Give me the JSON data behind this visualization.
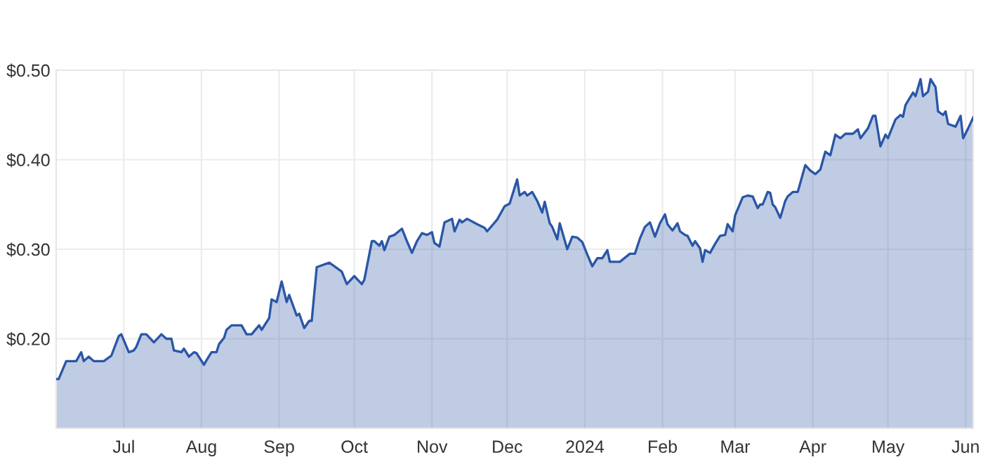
{
  "chart_data": {
    "type": "area",
    "x": [
      "2023-06-04",
      "2023-06-05",
      "2023-06-08",
      "2023-06-12",
      "2023-06-14",
      "2023-06-15",
      "2023-06-17",
      "2023-06-19",
      "2023-06-23",
      "2023-06-26",
      "2023-06-29",
      "2023-06-30",
      "2023-07-03",
      "2023-07-05",
      "2023-07-06",
      "2023-07-08",
      "2023-07-10",
      "2023-07-13",
      "2023-07-16",
      "2023-07-18",
      "2023-07-20",
      "2023-07-21",
      "2023-07-24",
      "2023-07-25",
      "2023-07-27",
      "2023-07-29",
      "2023-07-30",
      "2023-08-02",
      "2023-08-03",
      "2023-08-05",
      "2023-08-07",
      "2023-08-08",
      "2023-08-10",
      "2023-08-11",
      "2023-08-13",
      "2023-08-17",
      "2023-08-19",
      "2023-08-21",
      "2023-08-24",
      "2023-08-25",
      "2023-08-28",
      "2023-08-29",
      "2023-08-31",
      "2023-09-02",
      "2023-09-04",
      "2023-09-05",
      "2023-09-08",
      "2023-09-09",
      "2023-09-11",
      "2023-09-13",
      "2023-09-14",
      "2023-09-16",
      "2023-09-21",
      "2023-09-23",
      "2023-09-26",
      "2023-09-28",
      "2023-10-01",
      "2023-10-04",
      "2023-10-05",
      "2023-10-08",
      "2023-10-09",
      "2023-10-11",
      "2023-10-12",
      "2023-10-13",
      "2023-10-15",
      "2023-10-17",
      "2023-10-20",
      "2023-10-22",
      "2023-10-24",
      "2023-10-26",
      "2023-10-28",
      "2023-10-30",
      "2023-11-01",
      "2023-11-02",
      "2023-11-04",
      "2023-11-06",
      "2023-11-09",
      "2023-11-10",
      "2023-11-12",
      "2023-11-13",
      "2023-11-15",
      "2023-11-19",
      "2023-11-22",
      "2023-11-23",
      "2023-11-27",
      "2023-11-30",
      "2023-12-02",
      "2023-12-05",
      "2023-12-06",
      "2023-12-08",
      "2023-12-09",
      "2023-12-11",
      "2023-12-13",
      "2023-12-15",
      "2023-12-16",
      "2023-12-18",
      "2023-12-19",
      "2023-12-21",
      "2023-12-22",
      "2023-12-25",
      "2023-12-27",
      "2023-12-29",
      "2023-12-31",
      "2024-01-02",
      "2024-01-04",
      "2024-01-06",
      "2024-01-08",
      "2024-01-10",
      "2024-01-11",
      "2024-01-15",
      "2024-01-19",
      "2024-01-21",
      "2024-01-23",
      "2024-01-25",
      "2024-01-27",
      "2024-01-29",
      "2024-01-31",
      "2024-02-02",
      "2024-02-03",
      "2024-02-05",
      "2024-02-07",
      "2024-02-08",
      "2024-02-10",
      "2024-02-11",
      "2024-02-13",
      "2024-02-14",
      "2024-02-16",
      "2024-02-17",
      "2024-02-18",
      "2024-02-20",
      "2024-02-22",
      "2024-02-24",
      "2024-02-26",
      "2024-02-27",
      "2024-02-29",
      "2024-03-01",
      "2024-03-04",
      "2024-03-06",
      "2024-03-08",
      "2024-03-10",
      "2024-03-11",
      "2024-03-12",
      "2024-03-14",
      "2024-03-15",
      "2024-03-16",
      "2024-03-17",
      "2024-03-19",
      "2024-03-21",
      "2024-03-22",
      "2024-03-24",
      "2024-03-26",
      "2024-03-29",
      "2024-03-31",
      "2024-04-02",
      "2024-04-04",
      "2024-04-06",
      "2024-04-08",
      "2024-04-10",
      "2024-04-12",
      "2024-04-14",
      "2024-04-17",
      "2024-04-19",
      "2024-04-20",
      "2024-04-23",
      "2024-04-25",
      "2024-04-26",
      "2024-04-28",
      "2024-04-30",
      "2024-05-01",
      "2024-05-04",
      "2024-05-06",
      "2024-05-07",
      "2024-05-08",
      "2024-05-11",
      "2024-05-12",
      "2024-05-14",
      "2024-05-15",
      "2024-05-17",
      "2024-05-18",
      "2024-05-20",
      "2024-05-21",
      "2024-05-23",
      "2024-05-24",
      "2024-05-25",
      "2024-05-28",
      "2024-05-30",
      "2024-05-31",
      "2024-06-02",
      "2024-06-04"
    ],
    "series": [
      {
        "color": "#2a56a6",
        "values": [
          0.155,
          0.155,
          0.175,
          0.175,
          0.185,
          0.175,
          0.18,
          0.175,
          0.175,
          0.181,
          0.203,
          0.205,
          0.185,
          0.187,
          0.191,
          0.205,
          0.205,
          0.196,
          0.205,
          0.2,
          0.2,
          0.187,
          0.185,
          0.189,
          0.18,
          0.185,
          0.184,
          0.171,
          0.176,
          0.185,
          0.185,
          0.194,
          0.201,
          0.21,
          0.215,
          0.215,
          0.205,
          0.205,
          0.215,
          0.21,
          0.223,
          0.244,
          0.241,
          0.264,
          0.241,
          0.249,
          0.226,
          0.228,
          0.212,
          0.22,
          0.22,
          0.28,
          0.285,
          0.281,
          0.275,
          0.261,
          0.27,
          0.261,
          0.266,
          0.309,
          0.309,
          0.304,
          0.309,
          0.299,
          0.314,
          0.316,
          0.323,
          0.309,
          0.296,
          0.309,
          0.318,
          0.316,
          0.319,
          0.307,
          0.303,
          0.33,
          0.334,
          0.32,
          0.333,
          0.33,
          0.334,
          0.328,
          0.324,
          0.32,
          0.333,
          0.348,
          0.351,
          0.378,
          0.36,
          0.364,
          0.36,
          0.364,
          0.354,
          0.341,
          0.353,
          0.329,
          0.325,
          0.311,
          0.329,
          0.3,
          0.314,
          0.313,
          0.308,
          0.294,
          0.281,
          0.29,
          0.29,
          0.299,
          0.286,
          0.286,
          0.295,
          0.295,
          0.312,
          0.325,
          0.33,
          0.314,
          0.329,
          0.339,
          0.328,
          0.321,
          0.329,
          0.32,
          0.316,
          0.315,
          0.304,
          0.309,
          0.301,
          0.286,
          0.299,
          0.296,
          0.306,
          0.315,
          0.316,
          0.328,
          0.32,
          0.338,
          0.358,
          0.36,
          0.359,
          0.346,
          0.35,
          0.35,
          0.364,
          0.363,
          0.35,
          0.347,
          0.335,
          0.354,
          0.359,
          0.364,
          0.364,
          0.394,
          0.388,
          0.384,
          0.389,
          0.409,
          0.405,
          0.428,
          0.424,
          0.429,
          0.429,
          0.434,
          0.424,
          0.435,
          0.449,
          0.449,
          0.415,
          0.428,
          0.424,
          0.445,
          0.45,
          0.448,
          0.461,
          0.475,
          0.471,
          0.49,
          0.471,
          0.476,
          0.49,
          0.481,
          0.454,
          0.45,
          0.454,
          0.44,
          0.437,
          0.449,
          0.424,
          0.435,
          0.447
        ]
      }
    ],
    "xlim": [
      "2023-06-04",
      "2024-06-04"
    ],
    "xticks": [
      {
        "value": "2023-07-01",
        "label": "Jul"
      },
      {
        "value": "2023-08-01",
        "label": "Aug"
      },
      {
        "value": "2023-09-01",
        "label": "Sep"
      },
      {
        "value": "2023-10-01",
        "label": "Oct"
      },
      {
        "value": "2023-11-01",
        "label": "Nov"
      },
      {
        "value": "2023-12-01",
        "label": "Dec"
      },
      {
        "value": "2024-01-01",
        "label": "2024"
      },
      {
        "value": "2024-02-01",
        "label": "Feb"
      },
      {
        "value": "2024-03-01",
        "label": "Mar"
      },
      {
        "value": "2024-04-01",
        "label": "Apr"
      },
      {
        "value": "2024-05-01",
        "label": "May"
      },
      {
        "value": "2024-06-01",
        "label": "Jun"
      }
    ],
    "ylim": [
      0.1,
      0.5
    ],
    "yticks": [
      {
        "value": 0.2,
        "label": "$0.20"
      },
      {
        "value": 0.3,
        "label": "$0.30"
      },
      {
        "value": 0.4,
        "label": "$0.40"
      },
      {
        "value": 0.5,
        "label": "$0.50"
      }
    ],
    "grid": true
  }
}
